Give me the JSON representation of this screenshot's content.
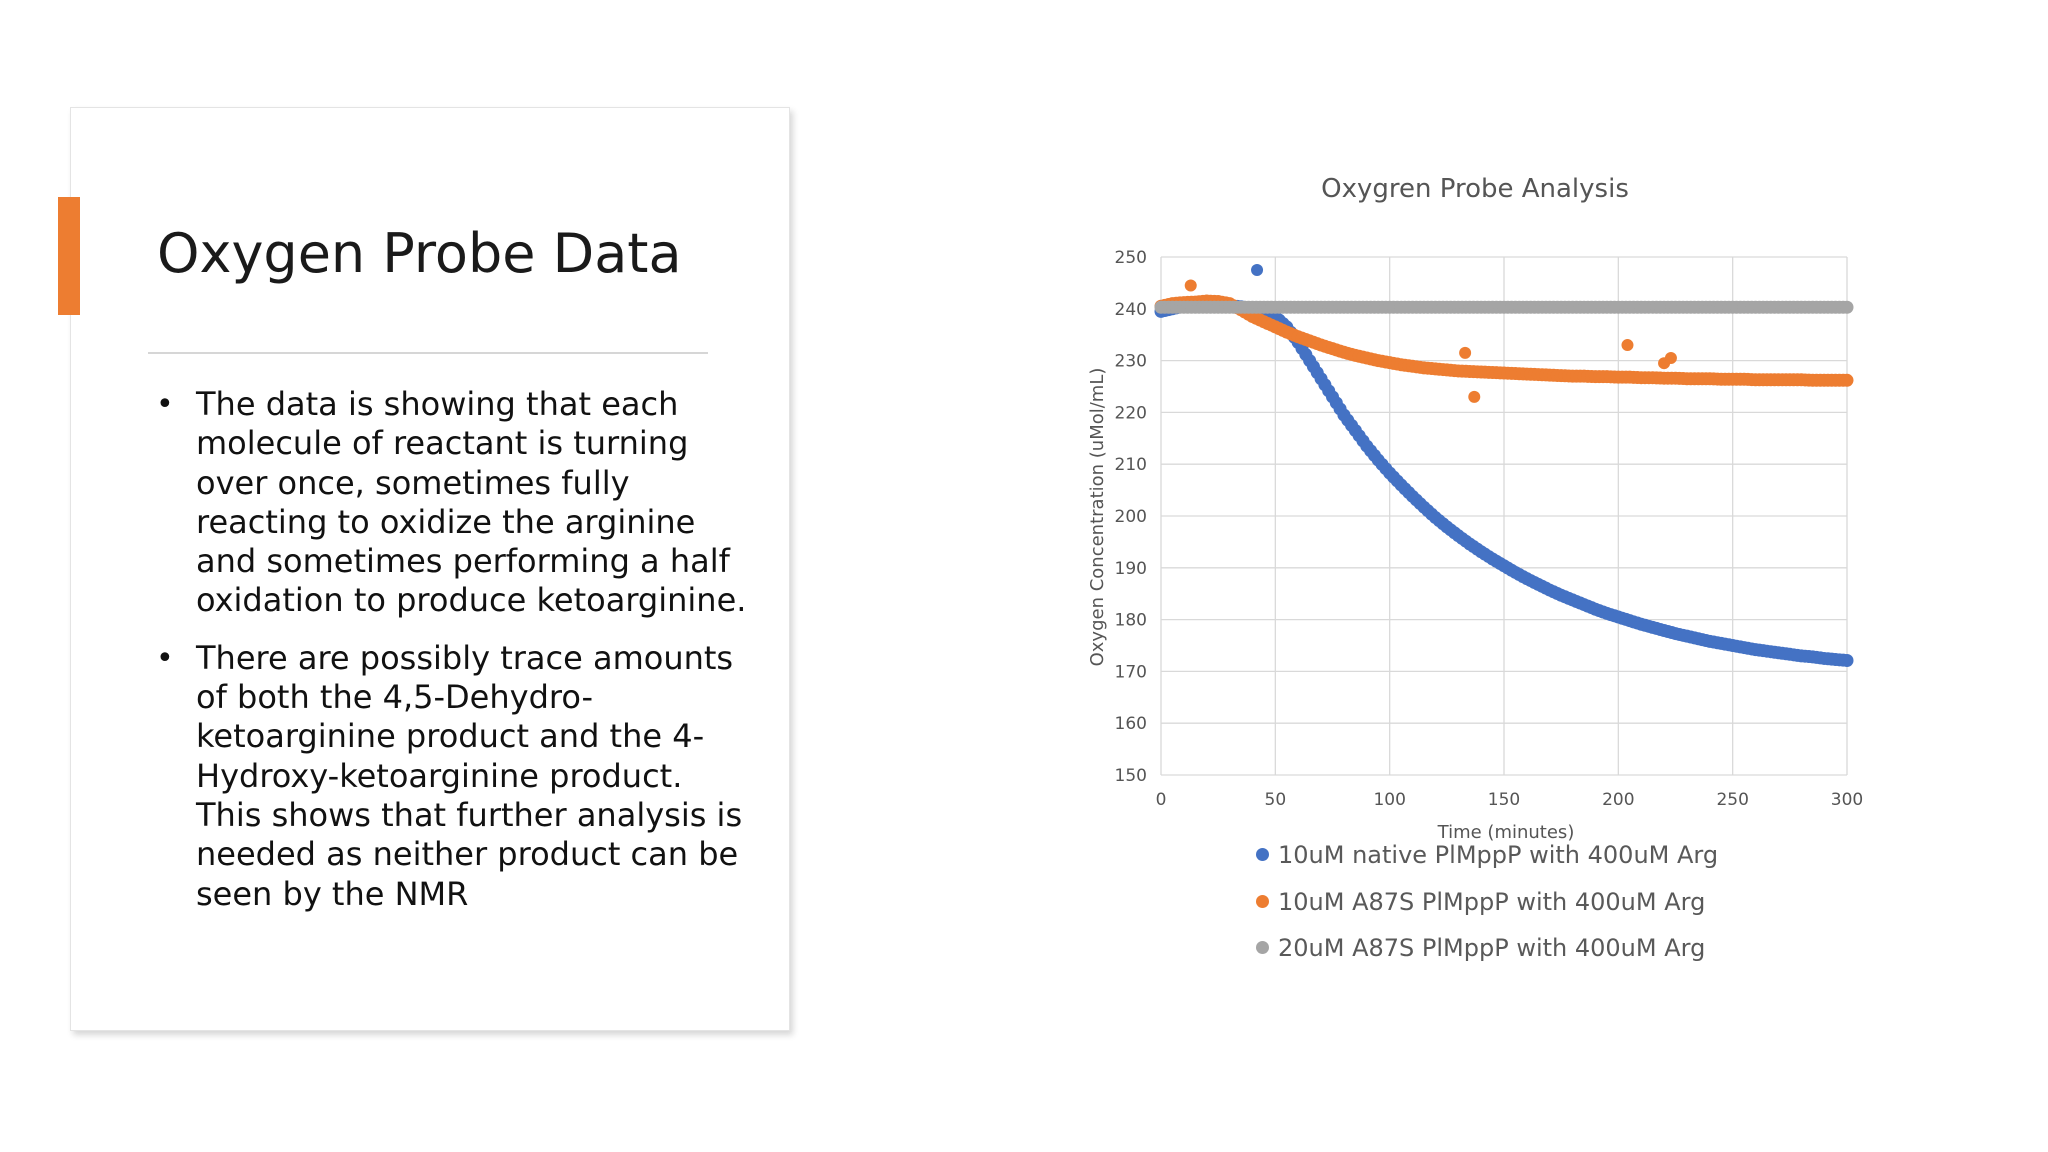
{
  "slide": {
    "title": "Oxygen Probe Data",
    "accent_color": "#ed7d31",
    "bullets": [
      "The data is showing that each molecule of reactant is turning over once, sometimes fully reacting to oxidize the arginine and sometimes performing a half oxidation to produce ketoarginine.",
      "There are possibly trace amounts of both the 4,5-Dehydro-ketoarginine product and the 4-Hydroxy-ketoarginine product. This shows that further analysis is needed as neither product can be seen by the NMR"
    ]
  },
  "chart_data": {
    "type": "scatter",
    "title": "Oxygren Probe Analysis",
    "xlabel": "Time (minutes)",
    "ylabel": "Oxygen Concentration (uMol/mL)",
    "xlim": [
      0,
      300
    ],
    "ylim": [
      150,
      250
    ],
    "xticks": [
      0,
      50,
      100,
      150,
      200,
      250,
      300
    ],
    "yticks": [
      150,
      160,
      170,
      180,
      190,
      200,
      210,
      220,
      230,
      240,
      250
    ],
    "grid": true,
    "legend_position": "bottom",
    "series": [
      {
        "name": "10uM native PlMppP with 400uM Arg",
        "color": "#4472c4",
        "points": [
          [
            0,
            239.5
          ],
          [
            5,
            240
          ],
          [
            10,
            240.5
          ],
          [
            15,
            240.5
          ],
          [
            20,
            240.7
          ],
          [
            25,
            240.8
          ],
          [
            30,
            240.6
          ],
          [
            35,
            240.4
          ],
          [
            40,
            240
          ],
          [
            45,
            239.5
          ],
          [
            50,
            238.5
          ],
          [
            55,
            236.5
          ],
          [
            60,
            233.5
          ],
          [
            65,
            230
          ],
          [
            70,
            226.5
          ],
          [
            75,
            223
          ],
          [
            80,
            219.5
          ],
          [
            85,
            216.5
          ],
          [
            90,
            213.5
          ],
          [
            95,
            210.8
          ],
          [
            100,
            208.3
          ],
          [
            105,
            206
          ],
          [
            110,
            203.8
          ],
          [
            115,
            201.7
          ],
          [
            120,
            199.7
          ],
          [
            125,
            197.9
          ],
          [
            130,
            196.2
          ],
          [
            135,
            194.6
          ],
          [
            140,
            193.1
          ],
          [
            145,
            191.7
          ],
          [
            150,
            190.4
          ],
          [
            155,
            189.1
          ],
          [
            160,
            187.9
          ],
          [
            165,
            186.8
          ],
          [
            170,
            185.7
          ],
          [
            175,
            184.7
          ],
          [
            180,
            183.8
          ],
          [
            185,
            182.9
          ],
          [
            190,
            182
          ],
          [
            195,
            181.2
          ],
          [
            200,
            180.5
          ],
          [
            205,
            179.8
          ],
          [
            210,
            179.1
          ],
          [
            215,
            178.5
          ],
          [
            220,
            177.9
          ],
          [
            225,
            177.3
          ],
          [
            230,
            176.8
          ],
          [
            235,
            176.3
          ],
          [
            240,
            175.8
          ],
          [
            245,
            175.4
          ],
          [
            250,
            175
          ],
          [
            255,
            174.6
          ],
          [
            260,
            174.2
          ],
          [
            265,
            173.9
          ],
          [
            270,
            173.6
          ],
          [
            275,
            173.3
          ],
          [
            280,
            173
          ],
          [
            285,
            172.8
          ],
          [
            290,
            172.5
          ],
          [
            295,
            172.3
          ],
          [
            300,
            172.1
          ]
        ],
        "outliers": [
          [
            42,
            247.5
          ]
        ]
      },
      {
        "name": "10uM A87S PlMppP with 400uM Arg",
        "color": "#ed7d31",
        "points": [
          [
            0,
            240.5
          ],
          [
            5,
            241
          ],
          [
            10,
            241.2
          ],
          [
            15,
            241.3
          ],
          [
            20,
            241.5
          ],
          [
            25,
            241.4
          ],
          [
            30,
            241
          ],
          [
            35,
            239.8
          ],
          [
            40,
            238.5
          ],
          [
            45,
            237.5
          ],
          [
            50,
            236.5
          ],
          [
            55,
            235.5
          ],
          [
            60,
            234.6
          ],
          [
            65,
            233.8
          ],
          [
            70,
            233
          ],
          [
            75,
            232.3
          ],
          [
            80,
            231.6
          ],
          [
            85,
            231
          ],
          [
            90,
            230.5
          ],
          [
            95,
            230
          ],
          [
            100,
            229.6
          ],
          [
            105,
            229.2
          ],
          [
            110,
            228.9
          ],
          [
            115,
            228.6
          ],
          [
            120,
            228.4
          ],
          [
            125,
            228.2
          ],
          [
            130,
            228
          ],
          [
            135,
            227.9
          ],
          [
            140,
            227.8
          ],
          [
            145,
            227.7
          ],
          [
            150,
            227.6
          ],
          [
            155,
            227.5
          ],
          [
            160,
            227.4
          ],
          [
            165,
            227.3
          ],
          [
            170,
            227.2
          ],
          [
            175,
            227.1
          ],
          [
            180,
            227
          ],
          [
            185,
            227
          ],
          [
            190,
            226.9
          ],
          [
            195,
            226.9
          ],
          [
            200,
            226.8
          ],
          [
            205,
            226.8
          ],
          [
            210,
            226.7
          ],
          [
            215,
            226.7
          ],
          [
            220,
            226.6
          ],
          [
            225,
            226.6
          ],
          [
            230,
            226.5
          ],
          [
            235,
            226.5
          ],
          [
            240,
            226.5
          ],
          [
            245,
            226.4
          ],
          [
            250,
            226.4
          ],
          [
            255,
            226.4
          ],
          [
            260,
            226.3
          ],
          [
            265,
            226.3
          ],
          [
            270,
            226.3
          ],
          [
            275,
            226.3
          ],
          [
            280,
            226.3
          ],
          [
            285,
            226.2
          ],
          [
            290,
            226.2
          ],
          [
            295,
            226.2
          ],
          [
            300,
            226.2
          ]
        ],
        "outliers": [
          [
            13,
            244.5
          ],
          [
            133,
            231.5
          ],
          [
            137,
            223
          ],
          [
            204,
            233
          ],
          [
            220,
            229.5
          ],
          [
            223,
            230.5
          ]
        ]
      },
      {
        "name": "20uM A87S PlMppP with 400uM Arg",
        "color": "#a5a5a5",
        "points": [
          [
            0,
            240.3
          ],
          [
            5,
            240.3
          ],
          [
            10,
            240.3
          ],
          [
            15,
            240.3
          ],
          [
            20,
            240.3
          ],
          [
            25,
            240.3
          ],
          [
            30,
            240.3
          ],
          [
            35,
            240.3
          ],
          [
            40,
            240.3
          ],
          [
            45,
            240.3
          ],
          [
            50,
            240.3
          ],
          [
            55,
            240.3
          ],
          [
            60,
            240.3
          ],
          [
            65,
            240.3
          ],
          [
            70,
            240.3
          ],
          [
            75,
            240.3
          ],
          [
            80,
            240.3
          ],
          [
            85,
            240.3
          ],
          [
            90,
            240.3
          ],
          [
            95,
            240.3
          ],
          [
            100,
            240.3
          ],
          [
            105,
            240.3
          ],
          [
            110,
            240.3
          ],
          [
            115,
            240.3
          ],
          [
            120,
            240.3
          ],
          [
            125,
            240.3
          ],
          [
            130,
            240.3
          ],
          [
            135,
            240.3
          ],
          [
            140,
            240.3
          ],
          [
            145,
            240.3
          ],
          [
            150,
            240.3
          ],
          [
            155,
            240.3
          ],
          [
            160,
            240.3
          ],
          [
            165,
            240.3
          ],
          [
            170,
            240.3
          ],
          [
            175,
            240.3
          ],
          [
            180,
            240.3
          ],
          [
            185,
            240.3
          ],
          [
            190,
            240.3
          ],
          [
            195,
            240.3
          ],
          [
            200,
            240.3
          ],
          [
            205,
            240.3
          ],
          [
            210,
            240.3
          ],
          [
            215,
            240.3
          ],
          [
            220,
            240.3
          ],
          [
            225,
            240.3
          ],
          [
            230,
            240.3
          ],
          [
            235,
            240.3
          ],
          [
            240,
            240.3
          ],
          [
            245,
            240.3
          ],
          [
            250,
            240.3
          ],
          [
            255,
            240.3
          ],
          [
            260,
            240.3
          ],
          [
            265,
            240.3
          ],
          [
            270,
            240.3
          ],
          [
            275,
            240.3
          ],
          [
            280,
            240.3
          ],
          [
            285,
            240.3
          ],
          [
            290,
            240.3
          ],
          [
            295,
            240.3
          ],
          [
            300,
            240.3
          ]
        ],
        "outliers": []
      }
    ]
  }
}
